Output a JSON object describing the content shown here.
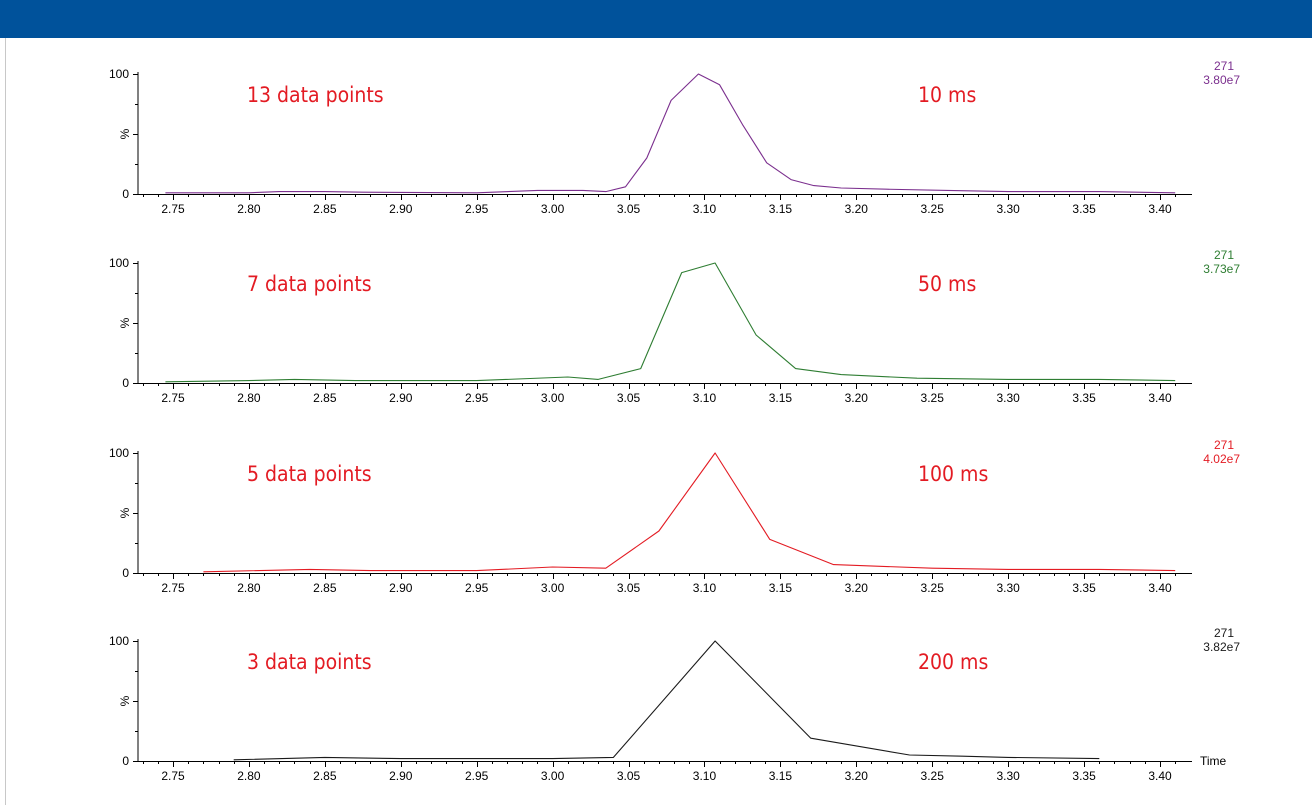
{
  "chart_data": [
    {
      "type": "line",
      "color": "#7b2f8e",
      "annotation_left": "13 data points",
      "annotation_right": "10 ms",
      "corner_mass": "271",
      "corner_intensity": "3.80e7",
      "xlim": [
        2.73,
        3.415
      ],
      "ylim": [
        0,
        100
      ],
      "y_ticks": [
        "100",
        "%",
        "0"
      ],
      "x_tick_labels": [
        "2.75",
        "2.80",
        "2.85",
        "2.90",
        "2.95",
        "3.00",
        "3.05",
        "3.10",
        "3.15",
        "3.20",
        "3.25",
        "3.30",
        "3.35",
        "3.40"
      ],
      "xlabel": "",
      "points": [
        [
          2.745,
          1
        ],
        [
          2.8,
          1
        ],
        [
          2.82,
          2
        ],
        [
          2.85,
          2
        ],
        [
          2.875,
          1.5
        ],
        [
          2.95,
          1
        ],
        [
          2.99,
          3
        ],
        [
          3.02,
          3
        ],
        [
          3.035,
          2
        ],
        [
          3.048,
          6
        ],
        [
          3.062,
          30
        ],
        [
          3.078,
          78
        ],
        [
          3.096,
          100
        ],
        [
          3.11,
          91
        ],
        [
          3.125,
          58
        ],
        [
          3.141,
          26
        ],
        [
          3.157,
          12
        ],
        [
          3.172,
          7
        ],
        [
          3.19,
          5
        ],
        [
          3.22,
          4
        ],
        [
          3.26,
          3
        ],
        [
          3.3,
          2
        ],
        [
          3.36,
          2
        ],
        [
          3.41,
          1
        ]
      ]
    },
    {
      "type": "line",
      "color": "#2e7d32",
      "annotation_left": "7 data points",
      "annotation_right": "50 ms",
      "corner_mass": "271",
      "corner_intensity": "3.73e7",
      "xlim": [
        2.73,
        3.415
      ],
      "ylim": [
        0,
        100
      ],
      "y_ticks": [
        "100",
        "%",
        "0"
      ],
      "x_tick_labels": [
        "2.75",
        "2.80",
        "2.85",
        "2.90",
        "2.95",
        "3.00",
        "3.05",
        "3.10",
        "3.15",
        "3.20",
        "3.25",
        "3.30",
        "3.35",
        "3.40"
      ],
      "xlabel": "",
      "points": [
        [
          2.745,
          1
        ],
        [
          2.8,
          2
        ],
        [
          2.83,
          3
        ],
        [
          2.87,
          2
        ],
        [
          2.95,
          2
        ],
        [
          3.01,
          5
        ],
        [
          3.03,
          3
        ],
        [
          3.058,
          12
        ],
        [
          3.085,
          92
        ],
        [
          3.107,
          100
        ],
        [
          3.134,
          40
        ],
        [
          3.16,
          12
        ],
        [
          3.19,
          7
        ],
        [
          3.24,
          4
        ],
        [
          3.3,
          3
        ],
        [
          3.36,
          3
        ],
        [
          3.41,
          2
        ]
      ]
    },
    {
      "type": "line",
      "color": "#e31b23",
      "annotation_left": "5 data points",
      "annotation_right": "100 ms",
      "corner_mass": "271",
      "corner_intensity": "4.02e7",
      "xlim": [
        2.73,
        3.415
      ],
      "ylim": [
        0,
        100
      ],
      "y_ticks": [
        "100",
        "%",
        "0"
      ],
      "x_tick_labels": [
        "2.75",
        "2.80",
        "2.85",
        "2.90",
        "2.95",
        "3.00",
        "3.05",
        "3.10",
        "3.15",
        "3.20",
        "3.25",
        "3.30",
        "3.35",
        "3.40"
      ],
      "xlabel": "",
      "points": [
        [
          2.77,
          1
        ],
        [
          2.84,
          3
        ],
        [
          2.88,
          2
        ],
        [
          2.95,
          2
        ],
        [
          3.0,
          5
        ],
        [
          3.035,
          4
        ],
        [
          3.07,
          35
        ],
        [
          3.107,
          100
        ],
        [
          3.143,
          28
        ],
        [
          3.185,
          7
        ],
        [
          3.25,
          4
        ],
        [
          3.3,
          3
        ],
        [
          3.36,
          3
        ],
        [
          3.41,
          2
        ]
      ]
    },
    {
      "type": "line",
      "color": "#1a1a1a",
      "annotation_left": "3 data points",
      "annotation_right": "200 ms",
      "corner_mass": "271",
      "corner_intensity": "3.82e7",
      "xlim": [
        2.73,
        3.415
      ],
      "ylim": [
        0,
        100
      ],
      "y_ticks": [
        "100",
        "%",
        "0"
      ],
      "x_tick_labels": [
        "2.75",
        "2.80",
        "2.85",
        "2.90",
        "2.95",
        "3.00",
        "3.05",
        "3.10",
        "3.15",
        "3.20",
        "3.25",
        "3.30",
        "3.35",
        "3.40"
      ],
      "xlabel": "Time",
      "points": [
        [
          2.79,
          1
        ],
        [
          2.85,
          3
        ],
        [
          2.9,
          2
        ],
        [
          2.95,
          2
        ],
        [
          3.0,
          2
        ],
        [
          3.04,
          3
        ],
        [
          3.107,
          100
        ],
        [
          3.17,
          19
        ],
        [
          3.235,
          5
        ],
        [
          3.27,
          4
        ],
        [
          3.3,
          3
        ],
        [
          3.36,
          2
        ]
      ]
    }
  ]
}
